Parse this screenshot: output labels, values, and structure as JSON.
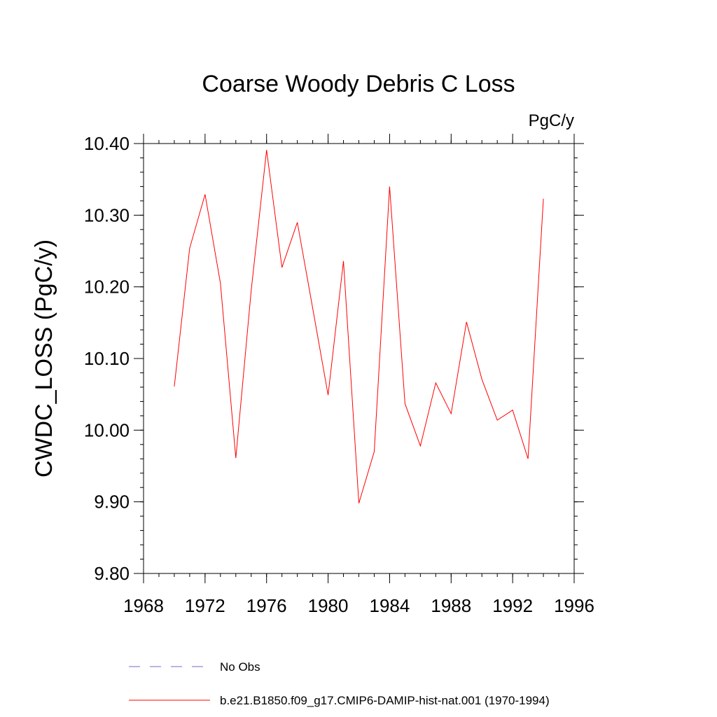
{
  "chart_data": {
    "type": "line",
    "title": "Coarse Woody Debris C Loss",
    "units": "PgC/y",
    "ylabel": "CWDC_LOSS  (PgC/y)",
    "xlabel": "",
    "xlim": [
      1968,
      1996
    ],
    "ylim": [
      9.8,
      10.4
    ],
    "xticks": [
      1968,
      1972,
      1976,
      1980,
      1984,
      1988,
      1992,
      1996
    ],
    "xtick_labels": [
      "1968",
      "1972",
      "1976",
      "1980",
      "1984",
      "1988",
      "1992",
      "1996"
    ],
    "yticks": [
      9.8,
      9.9,
      10.0,
      10.1,
      10.2,
      10.3,
      10.4
    ],
    "ytick_labels": [
      "9.80",
      "9.90",
      "10.00",
      "10.10",
      "10.20",
      "10.30",
      "10.40"
    ],
    "grid": false,
    "legend_position": "bottom",
    "series": [
      {
        "name": "No Obs",
        "color": "#7b68c8",
        "dash": "dashed",
        "x": [],
        "values": []
      },
      {
        "name": "b.e21.B1850.f09_g17.CMIP6-DAMIP-hist-nat.001 (1970-1994)",
        "color": "#ff0000",
        "dash": "solid",
        "x": [
          1970,
          1971,
          1972,
          1973,
          1974,
          1975,
          1976,
          1977,
          1978,
          1979,
          1980,
          1981,
          1982,
          1983,
          1984,
          1985,
          1986,
          1987,
          1988,
          1989,
          1990,
          1991,
          1992,
          1993,
          1994
        ],
        "values": [
          10.061,
          10.254,
          10.329,
          10.205,
          9.961,
          10.195,
          10.391,
          10.227,
          10.29,
          10.17,
          10.049,
          10.236,
          9.898,
          9.97,
          10.34,
          10.037,
          9.978,
          10.066,
          10.023,
          10.151,
          10.071,
          10.014,
          10.028,
          9.96,
          10.323
        ]
      }
    ]
  }
}
